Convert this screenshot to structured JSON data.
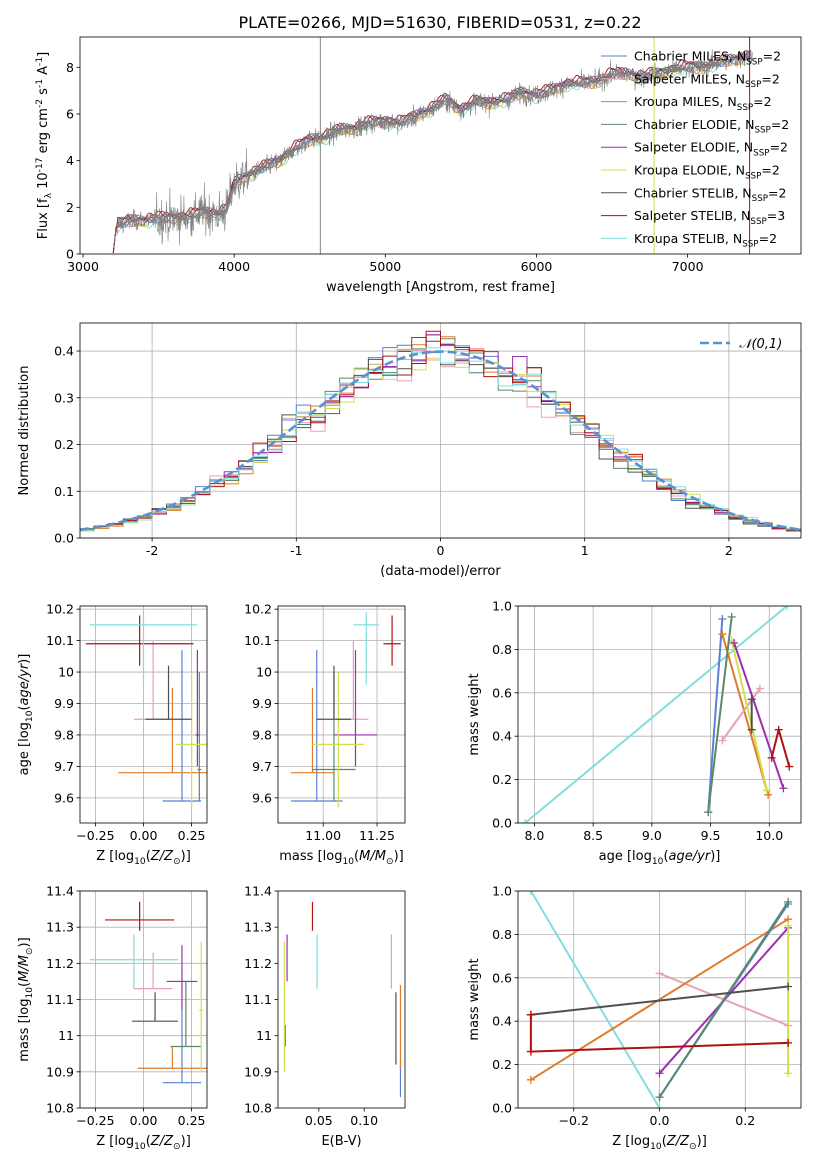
{
  "figure_title": "PLATE=0266, MJD=51630, FIBERID=0531, z=0.22",
  "colors": {
    "chabrier_miles": "#5b7fd6",
    "salpeter_miles": "#e8a0b8",
    "kroupa_miles": "#e07b2a",
    "chabrier_elodie": "#5a8a6a",
    "salpeter_elodie": "#9a2fb0",
    "kroupa_elodie": "#cfe04a",
    "chabrier_stelib": "#505050",
    "salpeter_stelib": "#b01010",
    "kroupa_stelib": "#80dede",
    "data": "#808080",
    "normal": "#5b8fd6"
  },
  "chart_data": [
    {
      "id": "spectrum",
      "type": "line",
      "xlabel": "wavelength [Angstrom, rest frame]",
      "ylabel": "Flux [f$_\\lambda$ 10$^{-17}$ erg cm$^{-2}$ s$^{-1}$ A$^{-1}$]",
      "xlim": [
        2980,
        7750
      ],
      "ylim": [
        0,
        9.3
      ],
      "xticks": [
        3000,
        4000,
        5000,
        6000,
        7000
      ],
      "yticks": [
        0,
        2,
        4,
        6,
        8
      ],
      "grid": false,
      "legend_position": "upper-right",
      "vlines": [
        4570,
        6778,
        7410
      ],
      "continuum": {
        "x": [
          3200,
          3220,
          3300,
          3400,
          3500,
          3600,
          3700,
          3800,
          3900,
          3950,
          4000,
          4100,
          4200,
          4300,
          4400,
          4500,
          4600,
          4700,
          4800,
          4900,
          5000,
          5100,
          5200,
          5300,
          5400,
          5500,
          5600,
          5700,
          5800,
          5900,
          6000,
          6100,
          6200,
          6300,
          6400,
          6500,
          6600,
          6700,
          6800,
          6900,
          7000,
          7100,
          7200,
          7300,
          7400
        ],
        "y": [
          0.05,
          1.2,
          1.4,
          1.45,
          1.5,
          1.55,
          1.6,
          1.8,
          1.7,
          1.9,
          3.0,
          3.4,
          3.7,
          4.0,
          4.5,
          4.9,
          5.0,
          5.3,
          5.4,
          5.6,
          5.7,
          5.6,
          5.9,
          6.2,
          6.6,
          6.2,
          6.5,
          6.5,
          6.6,
          6.9,
          6.8,
          7.0,
          7.3,
          7.3,
          7.4,
          7.7,
          7.7,
          7.6,
          7.7,
          7.9,
          8.0,
          8.0,
          8.2,
          8.3,
          8.5
        ]
      },
      "legend": [
        {
          "label": "Chabrier MILES, N$_{SSP}$=2",
          "color_key": "chabrier_miles"
        },
        {
          "label": "Salpeter MILES, N$_{SSP}$=2",
          "color_key": "salpeter_miles"
        },
        {
          "label": "Kroupa MILES, N$_{SSP}$=2",
          "color_key": "kroupa_miles"
        },
        {
          "label": "Chabrier ELODIE, N$_{SSP}$=2",
          "color_key": "chabrier_elodie"
        },
        {
          "label": "Salpeter ELODIE, N$_{SSP}$=2",
          "color_key": "salpeter_elodie"
        },
        {
          "label": "Kroupa ELODIE, N$_{SSP}$=2",
          "color_key": "kroupa_elodie"
        },
        {
          "label": "Chabrier STELIB, N$_{SSP}$=2",
          "color_key": "chabrier_stelib"
        },
        {
          "label": "Salpeter STELIB, N$_{SSP}$=3",
          "color_key": "salpeter_stelib"
        },
        {
          "label": "Kroupa STELIB, N$_{SSP}$=2",
          "color_key": "kroupa_stelib"
        }
      ]
    },
    {
      "id": "residuals",
      "type": "line",
      "xlabel": "(data-model)/error",
      "ylabel": "Normed distribution",
      "xlim": [
        -2.5,
        2.5
      ],
      "ylim": [
        0,
        0.46
      ],
      "xticks": [
        -2,
        -1,
        0,
        1,
        2
      ],
      "yticks": [
        0.0,
        0.1,
        0.2,
        0.3,
        0.4
      ],
      "grid": true,
      "bin_width": 0.1,
      "histogram_color_keys": [
        "chabrier_miles",
        "salpeter_miles",
        "kroupa_miles",
        "chabrier_elodie",
        "salpeter_elodie",
        "kroupa_elodie",
        "chabrier_stelib",
        "salpeter_stelib",
        "kroupa_stelib"
      ],
      "legend": [
        {
          "label": "$\\mathcal{N}(0,1)$",
          "color_key": "normal"
        }
      ]
    },
    {
      "id": "age_vs_z",
      "type": "scatter",
      "xlabel": "Z [log$_{10}$($Z/Z_\\odot$)]",
      "ylabel": "age  [log$_{10}$($age/yr$)]",
      "xlim": [
        -0.33,
        0.33
      ],
      "ylim": [
        9.52,
        10.21
      ],
      "xticks": [
        -0.25,
        0.0,
        0.25
      ],
      "xticklabels": [
        "−0.25",
        "0.00",
        "0.25"
      ],
      "yticks": [
        9.6,
        9.7,
        9.8,
        9.9,
        10.0,
        10.1,
        10.2
      ],
      "grid": true,
      "points": [
        {
          "color_key": "chabrier_miles",
          "x": 0.2,
          "xerr": 0.1,
          "y": 9.59,
          "yerr": [
            0.0,
            0.48
          ]
        },
        {
          "color_key": "salpeter_miles",
          "x": 0.05,
          "xerr": 0.1,
          "y": 9.85,
          "yerr": [
            0.0,
            0.25
          ]
        },
        {
          "color_key": "kroupa_miles",
          "x": 0.15,
          "xerr": 0.28,
          "y": 9.68,
          "yerr": [
            0.0,
            0.27
          ]
        },
        {
          "color_key": "chabrier_elodie",
          "x": 0.29,
          "xerr": 0.01,
          "y": 9.69,
          "yerr": [
            0.1,
            0.31
          ]
        },
        {
          "color_key": "salpeter_elodie",
          "x": 0.28,
          "xerr": 0.01,
          "y": 9.8,
          "yerr": [
            0.1,
            0.27
          ]
        },
        {
          "color_key": "kroupa_elodie",
          "x": 0.25,
          "xerr": 0.08,
          "y": 9.77,
          "yerr": [
            0.2,
            0.23
          ]
        },
        {
          "color_key": "chabrier_stelib",
          "x": 0.13,
          "xerr": 0.12,
          "y": 9.85,
          "yerr": [
            0.0,
            0.17
          ]
        },
        {
          "color_key": "salpeter_stelib",
          "x": -0.02,
          "xerr": 0.28,
          "y": 10.09,
          "yerr": [
            0.07,
            0.09
          ]
        },
        {
          "color_key": "kroupa_stelib",
          "x": 0.0,
          "xerr": 0.28,
          "y": 10.15,
          "yerr": [
            0.19,
            0.04
          ]
        }
      ]
    },
    {
      "id": "age_vs_mass",
      "type": "scatter",
      "xlabel": "mass [log$_{10}$($M/M_\\odot$)]",
      "ylabel": "",
      "xlim": [
        10.79,
        11.38
      ],
      "ylim": [
        9.52,
        10.21
      ],
      "xticks": [
        11.0,
        11.25
      ],
      "xticklabels": [
        "11.00",
        "11.25"
      ],
      "yticks": [
        9.6,
        9.7,
        9.8,
        9.9,
        10.0,
        10.1,
        10.2
      ],
      "grid": true,
      "points": [
        {
          "color_key": "chabrier_miles",
          "x": 10.97,
          "xerr": 0.12,
          "y": 9.59,
          "yerr": [
            0.0,
            0.48
          ]
        },
        {
          "color_key": "salpeter_miles",
          "x": 11.14,
          "xerr": 0.07,
          "y": 9.85,
          "yerr": [
            0.0,
            0.25
          ]
        },
        {
          "color_key": "kroupa_miles",
          "x": 10.95,
          "xerr": 0.1,
          "y": 9.68,
          "yerr": [
            0.0,
            0.27
          ]
        },
        {
          "color_key": "chabrier_elodie",
          "x": 11.05,
          "xerr": 0.1,
          "y": 9.69,
          "yerr": [
            0.1,
            0.31
          ]
        },
        {
          "color_key": "salpeter_elodie",
          "x": 11.15,
          "xerr": 0.1,
          "y": 9.8,
          "yerr": [
            0.1,
            0.27
          ]
        },
        {
          "color_key": "kroupa_elodie",
          "x": 11.07,
          "xerr": 0.12,
          "y": 9.77,
          "yerr": [
            0.2,
            0.23
          ]
        },
        {
          "color_key": "chabrier_stelib",
          "x": 11.05,
          "xerr": 0.08,
          "y": 9.85,
          "yerr": [
            0.0,
            0.17
          ]
        },
        {
          "color_key": "salpeter_stelib",
          "x": 11.32,
          "xerr": 0.04,
          "y": 10.09,
          "yerr": [
            0.07,
            0.09
          ]
        },
        {
          "color_key": "kroupa_stelib",
          "x": 11.2,
          "xerr": 0.06,
          "y": 10.15,
          "yerr": [
            0.19,
            0.04
          ]
        }
      ]
    },
    {
      "id": "weight_vs_age",
      "type": "line",
      "xlabel": "age  [log$_{10}$($age/yr$)]",
      "ylabel": "mass weight",
      "xlim": [
        7.86,
        10.27
      ],
      "ylim": [
        0,
        1.0
      ],
      "xticks": [
        8.0,
        8.5,
        9.0,
        9.5,
        10.0
      ],
      "xticklabels": [
        "8.0",
        "8.5",
        "9.0",
        "9.5",
        "10.0"
      ],
      "yticks": [
        0.0,
        0.2,
        0.4,
        0.6,
        0.8,
        1.0
      ],
      "grid": true,
      "series": [
        {
          "color_key": "kroupa_stelib",
          "x": [
            7.92,
            10.15
          ],
          "y": [
            0.0,
            1.0
          ]
        },
        {
          "color_key": "chabrier_miles",
          "x": [
            9.48,
            9.6
          ],
          "y": [
            0.05,
            0.94
          ]
        },
        {
          "color_key": "kroupa_miles",
          "x": [
            9.6,
            9.99
          ],
          "y": [
            0.87,
            0.13
          ]
        },
        {
          "color_key": "salpeter_miles",
          "x": [
            9.6,
            9.92
          ],
          "y": [
            0.38,
            0.62
          ]
        },
        {
          "color_key": "kroupa_elodie",
          "x": [
            9.68,
            9.98
          ],
          "y": [
            0.84,
            0.15
          ]
        },
        {
          "color_key": "salpeter_elodie",
          "x": [
            9.7,
            10.12
          ],
          "y": [
            0.83,
            0.16
          ]
        },
        {
          "color_key": "chabrier_elodie",
          "x": [
            9.48,
            9.68
          ],
          "y": [
            0.05,
            0.95
          ]
        },
        {
          "color_key": "chabrier_stelib",
          "x": [
            9.85,
            9.85
          ],
          "y": [
            0.43,
            0.57
          ]
        },
        {
          "color_key": "salpeter_stelib",
          "x": [
            10.02,
            10.08,
            10.17
          ],
          "y": [
            0.3,
            0.43,
            0.26
          ]
        }
      ]
    },
    {
      "id": "mass_vs_z",
      "type": "scatter",
      "xlabel": "Z [log$_{10}$($Z/Z_\\odot$)]",
      "ylabel": "mass [log$_{10}$($M/M_\\odot$)]",
      "xlim": [
        -0.33,
        0.33
      ],
      "ylim": [
        10.8,
        11.4
      ],
      "xticks": [
        -0.25,
        0.0,
        0.25
      ],
      "xticklabels": [
        "−0.25",
        "0.00",
        "0.25"
      ],
      "yticks": [
        10.8,
        10.9,
        11.0,
        11.1,
        11.2,
        11.3,
        11.4
      ],
      "grid": true,
      "points": [
        {
          "color_key": "chabrier_miles",
          "x": 0.2,
          "xerr": 0.1,
          "y": 10.87,
          "yerr": [
            0.0,
            0.2
          ]
        },
        {
          "color_key": "salpeter_miles",
          "x": 0.05,
          "xerr": 0.1,
          "y": 11.13,
          "yerr": [
            0.0,
            0.1
          ]
        },
        {
          "color_key": "kroupa_miles",
          "x": 0.15,
          "xerr": 0.18,
          "y": 10.91,
          "yerr": [
            0.0,
            0.06
          ]
        },
        {
          "color_key": "chabrier_elodie",
          "x": 0.22,
          "xerr": 0.08,
          "y": 10.97,
          "yerr": [
            0.0,
            0.18
          ]
        },
        {
          "color_key": "salpeter_elodie",
          "x": 0.2,
          "xerr": 0.08,
          "y": 11.15,
          "yerr": [
            0.08,
            0.1
          ]
        },
        {
          "color_key": "kroupa_elodie",
          "x": 0.3,
          "xerr": 0.01,
          "y": 11.07,
          "yerr": [
            0.17,
            0.19
          ]
        },
        {
          "color_key": "chabrier_stelib",
          "x": 0.06,
          "xerr": 0.12,
          "y": 11.04,
          "yerr": [
            0.0,
            0.08
          ]
        },
        {
          "color_key": "salpeter_stelib",
          "x": -0.02,
          "xerr": 0.18,
          "y": 11.32,
          "yerr": [
            0.03,
            0.05
          ]
        },
        {
          "color_key": "kroupa_stelib",
          "x": -0.05,
          "xerr": 0.23,
          "y": 11.21,
          "yerr": [
            0.08,
            0.07
          ]
        }
      ]
    },
    {
      "id": "mass_vs_ebv",
      "type": "scatter",
      "xlabel": "E(B-V)",
      "ylabel": "",
      "xlim": [
        0.005,
        0.145
      ],
      "ylim": [
        10.8,
        11.4
      ],
      "xticks": [
        0.05,
        0.1
      ],
      "xticklabels": [
        "0.05",
        "0.10"
      ],
      "yticks": [
        10.8,
        10.9,
        11.0,
        11.1,
        11.2,
        11.3,
        11.4
      ],
      "grid": false,
      "points": [
        {
          "color_key": "chabrier_miles",
          "x": 0.14,
          "y": 10.87,
          "yerr": [
            0.04,
            0.06
          ]
        },
        {
          "color_key": "salpeter_miles",
          "x": 0.13,
          "y": 11.13,
          "yerr": [
            0.0,
            0.15
          ]
        },
        {
          "color_key": "kroupa_miles",
          "x": 0.14,
          "y": 10.91,
          "yerr": [
            0.0,
            0.23
          ]
        },
        {
          "color_key": "chabrier_elodie",
          "x": 0.013,
          "y": 10.97,
          "yerr": [
            0.0,
            0.06
          ]
        },
        {
          "color_key": "salpeter_elodie",
          "x": 0.015,
          "y": 11.15,
          "yerr": [
            0.0,
            0.13
          ]
        },
        {
          "color_key": "kroupa_elodie",
          "x": 0.012,
          "y": 11.07,
          "yerr": [
            0.17,
            0.19
          ]
        },
        {
          "color_key": "chabrier_stelib",
          "x": 0.135,
          "y": 11.04,
          "yerr": [
            0.12,
            0.08
          ]
        },
        {
          "color_key": "salpeter_stelib",
          "x": 0.043,
          "y": 11.32,
          "yerr": [
            0.03,
            0.05
          ]
        },
        {
          "color_key": "kroupa_stelib",
          "x": 0.048,
          "y": 11.21,
          "yerr": [
            0.08,
            0.07
          ]
        }
      ]
    },
    {
      "id": "weight_vs_z",
      "type": "line",
      "xlabel": "Z [log$_{10}$($Z/Z_\\odot$)]",
      "ylabel": "mass weight",
      "xlim": [
        -0.33,
        0.33
      ],
      "ylim": [
        0,
        1.0
      ],
      "xticks": [
        -0.2,
        0.0,
        0.2
      ],
      "xticklabels": [
        "−0.2",
        "0.0",
        "0.2"
      ],
      "yticks": [
        0.0,
        0.2,
        0.4,
        0.6,
        0.8,
        1.0
      ],
      "grid": true,
      "series": [
        {
          "color_key": "kroupa_stelib",
          "x": [
            -0.3,
            0.0
          ],
          "y": [
            1.0,
            0.0
          ]
        },
        {
          "color_key": "salpeter_miles",
          "x": [
            0.0,
            0.3
          ],
          "y": [
            0.62,
            0.38
          ]
        },
        {
          "color_key": "kroupa_miles",
          "x": [
            -0.3,
            0.3
          ],
          "y": [
            0.13,
            0.87
          ]
        },
        {
          "color_key": "salpeter_elodie",
          "x": [
            0.0,
            0.3
          ],
          "y": [
            0.16,
            0.83
          ]
        },
        {
          "color_key": "kroupa_elodie",
          "x": [
            0.3,
            0.3
          ],
          "y": [
            0.16,
            0.84
          ]
        },
        {
          "color_key": "chabrier_miles",
          "x": [
            0.0,
            0.3
          ],
          "y": [
            0.05,
            0.94
          ]
        },
        {
          "color_key": "chabrier_elodie",
          "x": [
            0.0,
            0.3
          ],
          "y": [
            0.05,
            0.95
          ]
        },
        {
          "color_key": "chabrier_stelib",
          "x": [
            -0.3,
            0.3
          ],
          "y": [
            0.43,
            0.56
          ]
        },
        {
          "color_key": "salpeter_stelib",
          "x": [
            -0.3,
            -0.3,
            0.3
          ],
          "y": [
            0.43,
            0.26,
            0.3
          ]
        }
      ]
    }
  ]
}
